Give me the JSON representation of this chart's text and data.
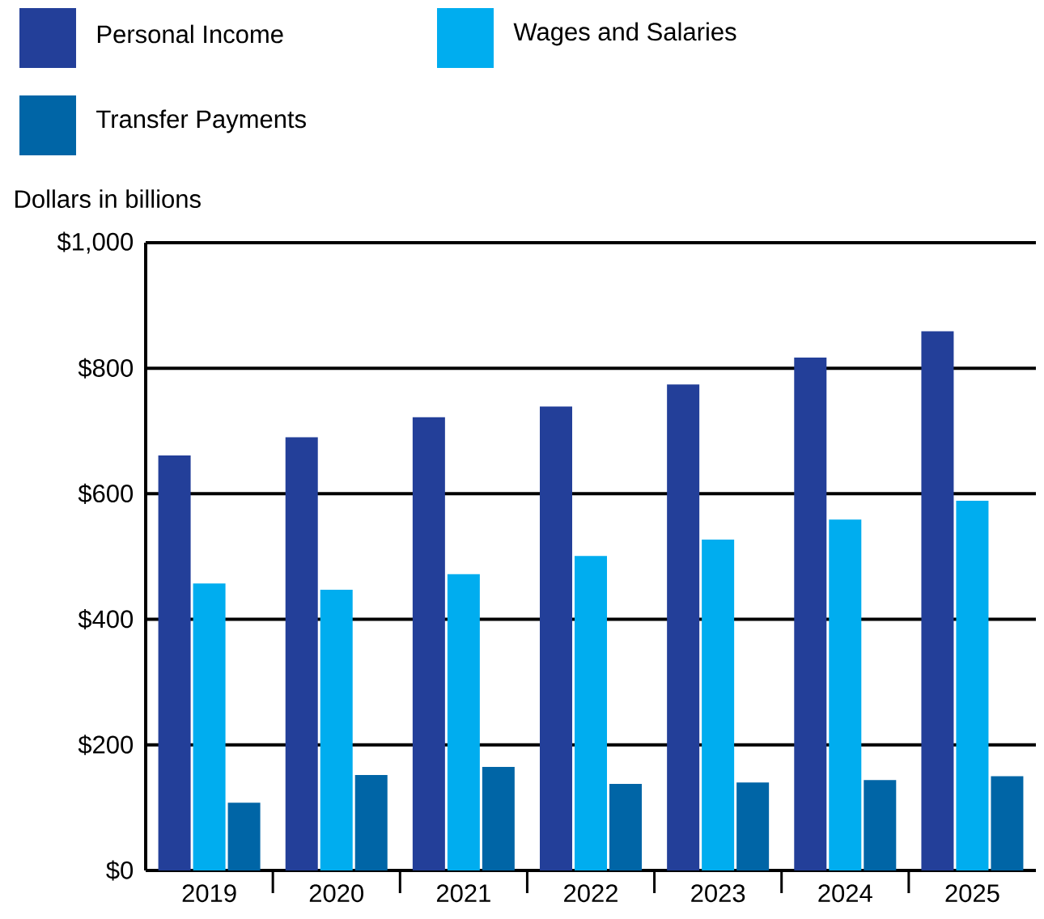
{
  "chart_data": {
    "type": "bar",
    "ylabel": "Dollars in billions",
    "categories": [
      "2019",
      "2020",
      "2021",
      "2022",
      "2023",
      "2024",
      "2025"
    ],
    "series": [
      {
        "name": "Personal Income",
        "color": "#233f99",
        "values": [
          661,
          690,
          722,
          739,
          774,
          817,
          859
        ]
      },
      {
        "name": "Wages and Salaries",
        "color": "#00adef",
        "values": [
          457,
          447,
          472,
          501,
          527,
          559,
          589
        ]
      },
      {
        "name": "Transfer Payments",
        "color": "#0065a6",
        "values": [
          108,
          152,
          165,
          138,
          140,
          144,
          150
        ]
      }
    ],
    "ylim": [
      0,
      1000
    ],
    "yticks": [
      {
        "value": 0,
        "label": "$0"
      },
      {
        "value": 200,
        "label": "$200"
      },
      {
        "value": 400,
        "label": "$400"
      },
      {
        "value": 600,
        "label": "$600"
      },
      {
        "value": 800,
        "label": "$800"
      },
      {
        "value": 1000,
        "label": "$1,000"
      }
    ],
    "grid": "y",
    "legend": "top"
  }
}
